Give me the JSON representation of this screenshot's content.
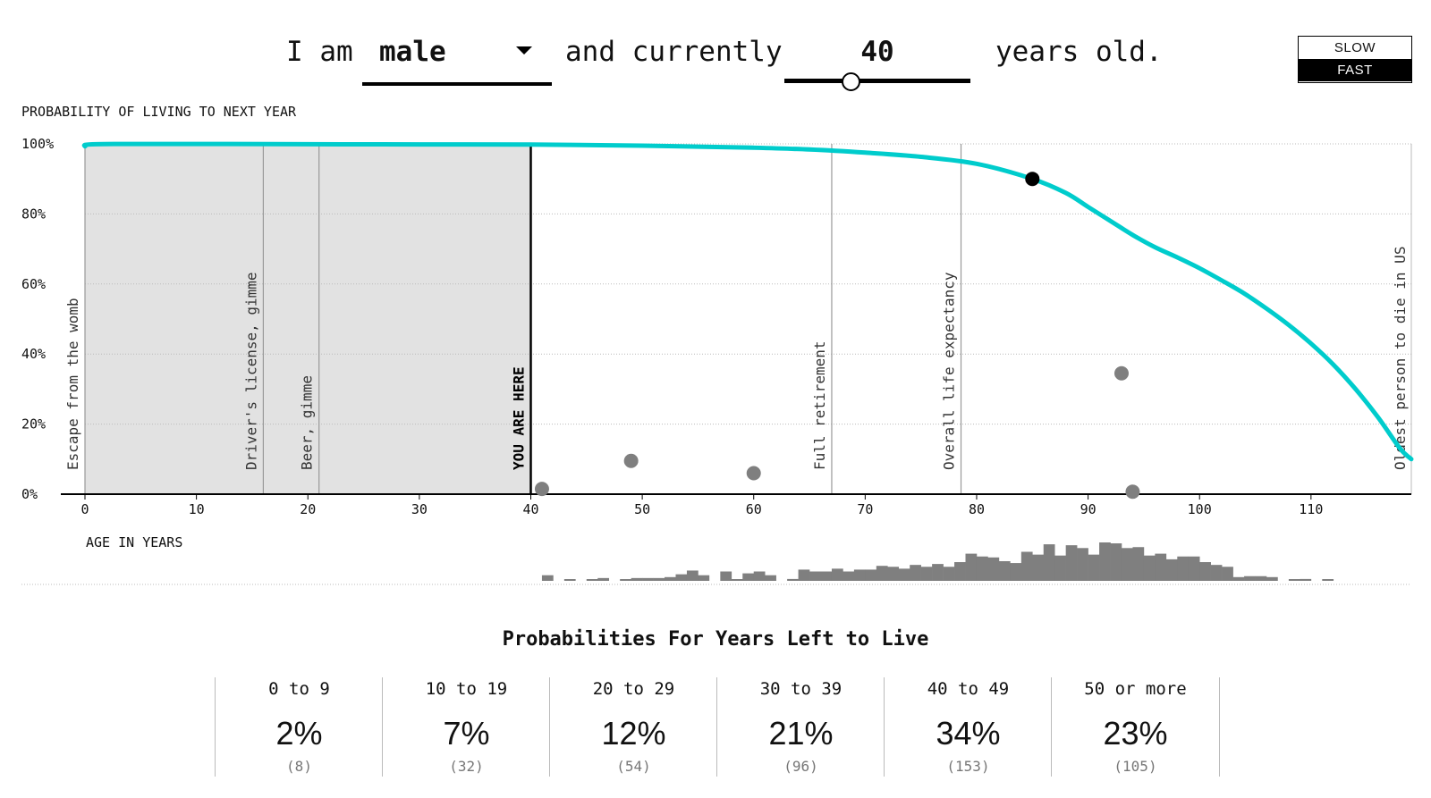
{
  "sentence": {
    "prefix": "I am",
    "sex_value": "male",
    "middle": "and currently",
    "age_value": "40",
    "suffix": "years old."
  },
  "speed": {
    "slow_label": "SLOW",
    "fast_label": "FAST",
    "active": "FAST"
  },
  "chart_data": {
    "type": "line",
    "ylabel": "PROBABILITY OF LIVING TO NEXT YEAR",
    "xlabel": "AGE IN YEARS",
    "xlim": [
      0,
      119
    ],
    "ylim": [
      0,
      100
    ],
    "x_ticks": [
      0,
      10,
      20,
      30,
      40,
      50,
      60,
      70,
      80,
      90,
      100,
      110
    ],
    "y_ticks": [
      0,
      20,
      40,
      60,
      80,
      100
    ],
    "y_tick_labels": [
      "0%",
      "20%",
      "40%",
      "60%",
      "80%",
      "100%"
    ],
    "grid": "horizontal dotted",
    "line_color": "#00cccc",
    "shaded_to_age": 40,
    "survival_curve": [
      {
        "x": 0,
        "y": 99.3
      },
      {
        "x": 1,
        "y": 99.9
      },
      {
        "x": 10,
        "y": 99.98
      },
      {
        "x": 20,
        "y": 99.9
      },
      {
        "x": 30,
        "y": 99.85
      },
      {
        "x": 40,
        "y": 99.8
      },
      {
        "x": 50,
        "y": 99.5
      },
      {
        "x": 55,
        "y": 99.2
      },
      {
        "x": 60,
        "y": 98.9
      },
      {
        "x": 65,
        "y": 98.4
      },
      {
        "x": 70,
        "y": 97.5
      },
      {
        "x": 75,
        "y": 96.3
      },
      {
        "x": 80,
        "y": 94.3
      },
      {
        "x": 85,
        "y": 90.0
      },
      {
        "x": 88,
        "y": 86.0
      },
      {
        "x": 90,
        "y": 82.0
      },
      {
        "x": 92,
        "y": 78.0
      },
      {
        "x": 94,
        "y": 74.0
      },
      {
        "x": 96,
        "y": 70.5
      },
      {
        "x": 98,
        "y": 67.6
      },
      {
        "x": 100,
        "y": 64.5
      },
      {
        "x": 102,
        "y": 61.0
      },
      {
        "x": 104,
        "y": 57.3
      },
      {
        "x": 106,
        "y": 53.0
      },
      {
        "x": 108,
        "y": 48.3
      },
      {
        "x": 110,
        "y": 43.0
      },
      {
        "x": 112,
        "y": 37.0
      },
      {
        "x": 114,
        "y": 30.0
      },
      {
        "x": 116,
        "y": 22.0
      },
      {
        "x": 118,
        "y": 13.0
      },
      {
        "x": 119,
        "y": 10.0
      }
    ],
    "current_marker": {
      "x": 85,
      "y": 90
    },
    "gray_dots": [
      {
        "x": 41,
        "y": 1.5
      },
      {
        "x": 49,
        "y": 9.5
      },
      {
        "x": 60,
        "y": 6
      },
      {
        "x": 93,
        "y": 34.5
      },
      {
        "x": 94,
        "y": 0.7
      }
    ],
    "milestones": [
      {
        "x": 0,
        "label": "Escape from the womb"
      },
      {
        "x": 16,
        "label": "Driver's license, gimme"
      },
      {
        "x": 21,
        "label": "Beer, gimme"
      },
      {
        "x": 40,
        "label": "YOU ARE HERE"
      },
      {
        "x": 67,
        "label": "Full retirement"
      },
      {
        "x": 78.6,
        "label": "Overall life expectancy"
      },
      {
        "x": 119,
        "label": "Oldest person to die in US"
      }
    ],
    "histogram": {
      "start_age": 41,
      "bin_width": 1,
      "max": 41,
      "counts": [
        6,
        0,
        1,
        0,
        1,
        3,
        0,
        1,
        3,
        3,
        3,
        4,
        7,
        11,
        6,
        0,
        10,
        1,
        8,
        10,
        6,
        0,
        2,
        12,
        10,
        10,
        13,
        10,
        12,
        12,
        16,
        15,
        13,
        17,
        15,
        18,
        15,
        20,
        29,
        26,
        25,
        21,
        19,
        31,
        28,
        39,
        27,
        38,
        35,
        28,
        41,
        40,
        35,
        36,
        27,
        29,
        23,
        26,
        26,
        20,
        17,
        15,
        4,
        5,
        5,
        4,
        0,
        1,
        2,
        0,
        1,
        0
      ]
    }
  },
  "probabilities": {
    "title": "Probabilities For Years Left to Live",
    "buckets": [
      {
        "label": "0 to 9",
        "pct": "2%",
        "count": "(8)"
      },
      {
        "label": "10 to 19",
        "pct": "7%",
        "count": "(32)"
      },
      {
        "label": "20 to 29",
        "pct": "12%",
        "count": "(54)"
      },
      {
        "label": "30 to 39",
        "pct": "21%",
        "count": "(96)"
      },
      {
        "label": "40 to 49",
        "pct": "34%",
        "count": "(153)"
      },
      {
        "label": "50 or more",
        "pct": "23%",
        "count": "(105)"
      }
    ]
  }
}
